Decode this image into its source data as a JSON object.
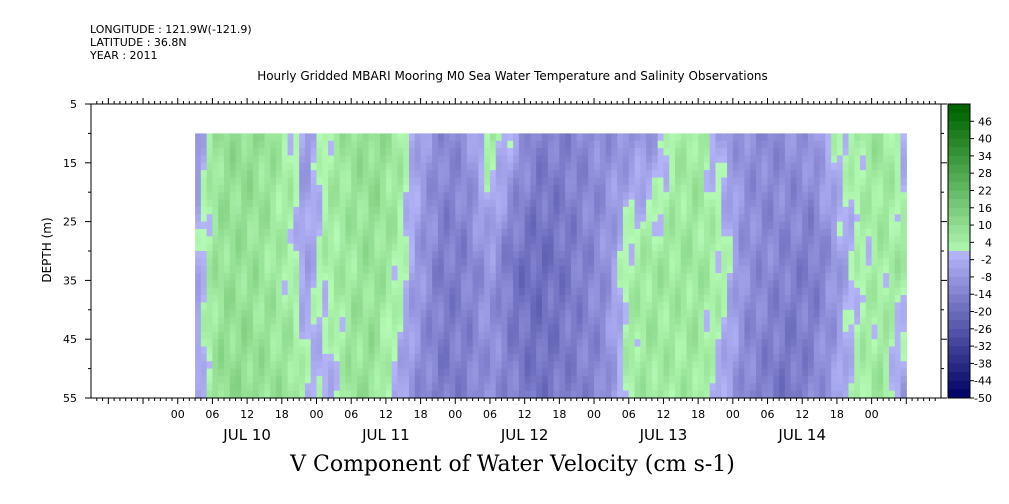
{
  "header": {
    "longitude": "LONGITUDE : 121.9W(-121.9)",
    "latitude": "LATITUDE : 36.8N",
    "year": "YEAR : 2011"
  },
  "chart_data": {
    "type": "heatmap",
    "title": "Hourly Gridded MBARI Mooring M0 Sea Water Temperature and Salinity Observations",
    "xlabel": "",
    "ylabel": "DEPTH (m)",
    "caption": "V Component of Water Velocity (cm s-1)",
    "ylim": [
      5,
      55
    ],
    "y_inverted": true,
    "y_ticks": [
      5,
      15,
      25,
      35,
      45,
      55
    ],
    "x_hour_ticks": [
      "00",
      "06",
      "12",
      "18",
      "00",
      "06",
      "12",
      "18",
      "00",
      "06",
      "12",
      "18",
      "00",
      "06",
      "12",
      "18",
      "00",
      "06",
      "12",
      "18",
      "00"
    ],
    "x_dates": [
      "JUL 10",
      "JUL 11",
      "JUL 12",
      "JUL 13",
      "JUL 14"
    ],
    "colorbar": {
      "min": -50,
      "max": 52,
      "step": 3,
      "labels": [
        46,
        40,
        34,
        28,
        22,
        16,
        10,
        4,
        -2,
        -8,
        -14,
        -20,
        -26,
        -32,
        -38,
        -44,
        -50
      ]
    },
    "data_depth_range": [
      10,
      55
    ],
    "data_time_range_hours": [
      3,
      126
    ],
    "profile": {
      "description_hours": "hours since JUL 10 00:00",
      "times": [
        3,
        6,
        8,
        12,
        16,
        20,
        22,
        26,
        30,
        34,
        38,
        42,
        46,
        50,
        54,
        58,
        62,
        66,
        70,
        74,
        78,
        82,
        86,
        90,
        94,
        98,
        102,
        106,
        110,
        114,
        118,
        122,
        126
      ],
      "shallow": [
        -10,
        6,
        9,
        10,
        8,
        2,
        -8,
        4,
        8,
        10,
        6,
        -6,
        -12,
        -10,
        6,
        -4,
        -14,
        -14,
        -12,
        -10,
        -10,
        -8,
        4,
        6,
        -6,
        -10,
        -12,
        -10,
        -8,
        2,
        4,
        8,
        -4
      ],
      "mid": [
        -4,
        6,
        8,
        8,
        6,
        2,
        -6,
        4,
        6,
        8,
        4,
        -8,
        -16,
        -14,
        -8,
        -18,
        -20,
        -18,
        -14,
        -10,
        4,
        6,
        6,
        6,
        4,
        -10,
        -12,
        -14,
        -16,
        -8,
        2,
        4,
        6
      ],
      "deep": [
        -8,
        6,
        10,
        10,
        8,
        8,
        2,
        -4,
        8,
        8,
        -4,
        -12,
        -16,
        -14,
        -10,
        -14,
        -18,
        -16,
        -14,
        -12,
        4,
        6,
        4,
        6,
        -4,
        -12,
        -16,
        -18,
        -12,
        -6,
        4,
        6,
        -10
      ]
    }
  }
}
